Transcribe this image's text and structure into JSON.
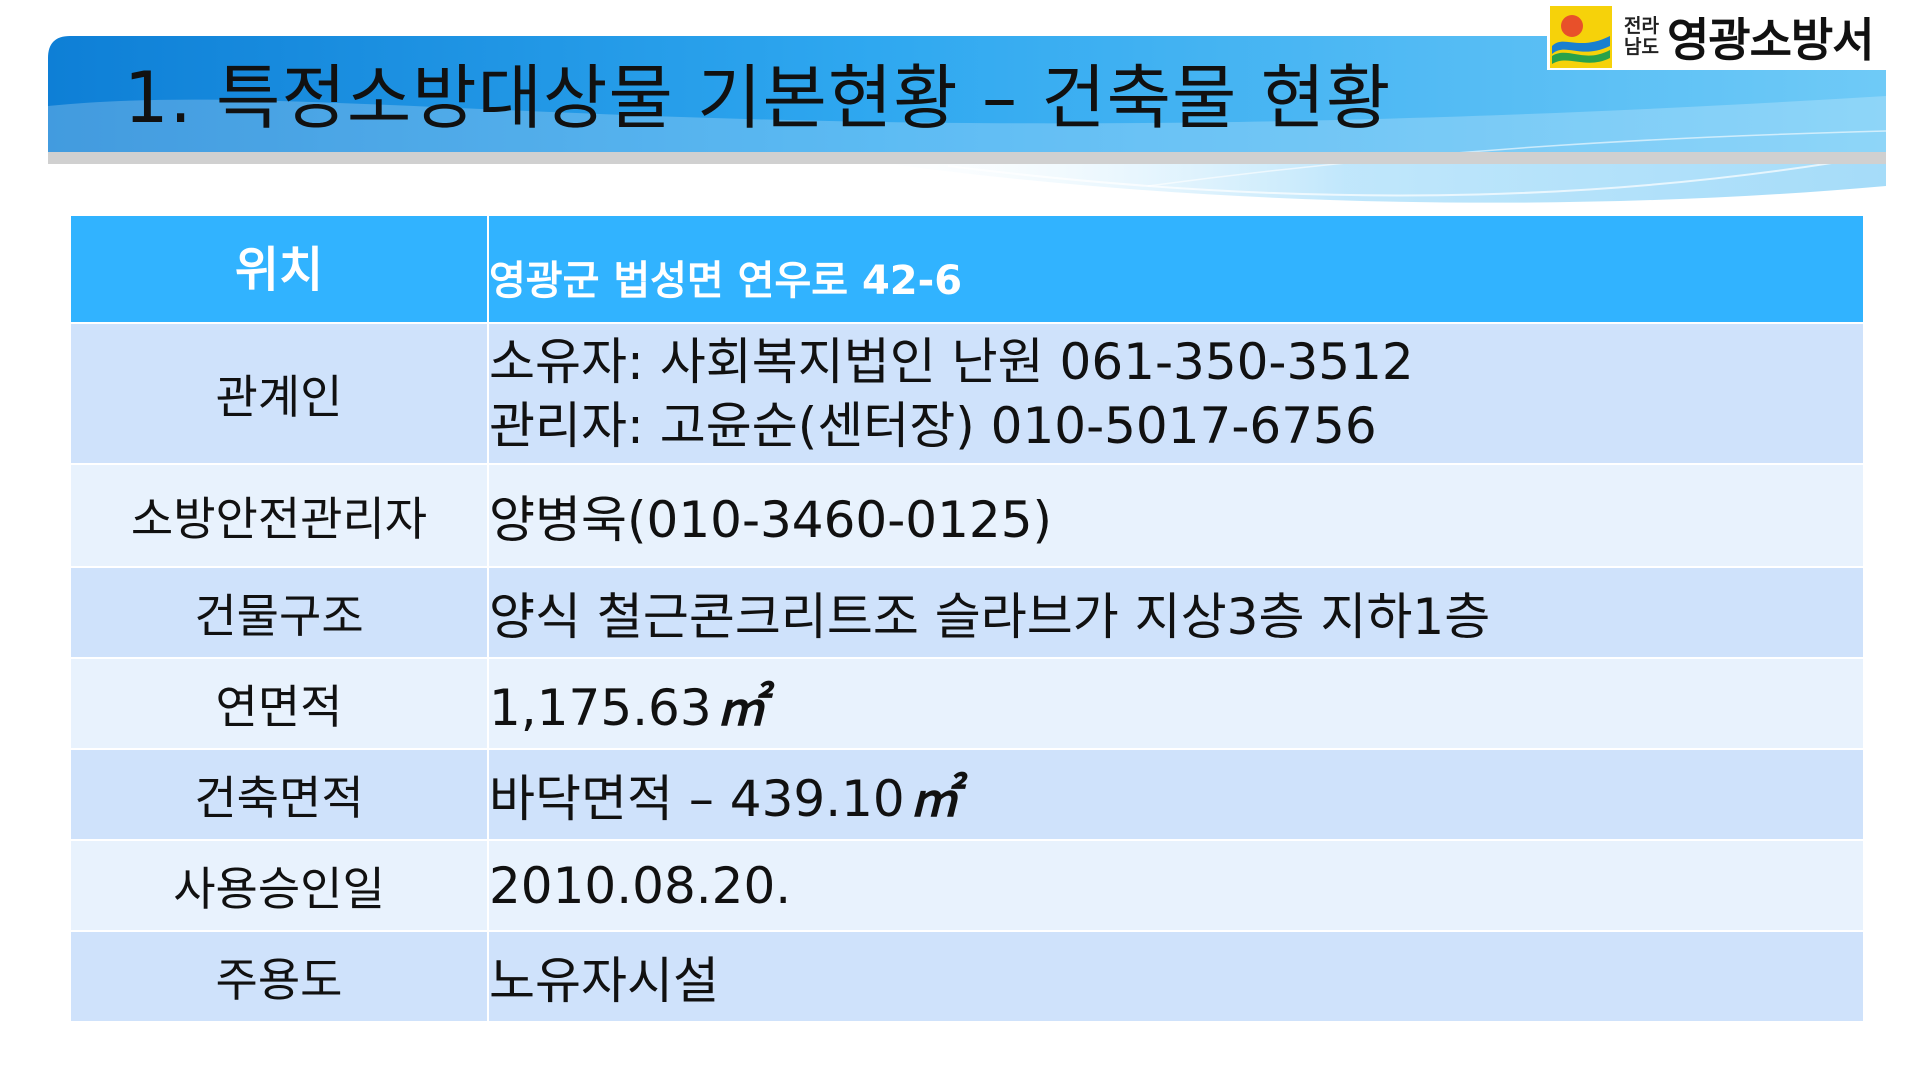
{
  "header": {
    "title": "1. 특정소방대상물 기본현황 – 건축물 현황",
    "accent_color": "#1f8fe0",
    "logo": {
      "icon": "emblem-icon",
      "region_line1": "전라",
      "region_line2": "남도",
      "name": "영광소방서"
    }
  },
  "table": {
    "header_row": {
      "label": "위치",
      "value": "영광군 법성면 연우로 42-6",
      "color": "#31b3ff"
    },
    "rows": [
      {
        "label": "관계인",
        "lines": [
          "소유자: 사회복지법인 난원 061-350-3512",
          "관리자: 고윤순(센터장) 010-5017-6756"
        ]
      },
      {
        "label": "소방안전관리자",
        "value": "양병욱(010-3460-0125)"
      },
      {
        "label": "건물구조",
        "value": "양식 철근콘크리트조 슬라브가 지상3층 지하1층"
      },
      {
        "label": "연면적",
        "value": "1,175.63",
        "unit": "㎡"
      },
      {
        "label": "건축면적",
        "value": "바닥면적 – 439.10",
        "unit": "㎡"
      },
      {
        "label": "사용승인일",
        "value": "2010.08.20."
      },
      {
        "label": "주용도",
        "value": "노유자시설"
      }
    ],
    "row_colors": {
      "dark": "#cfe2fb",
      "light": "#e8f2fd"
    }
  }
}
